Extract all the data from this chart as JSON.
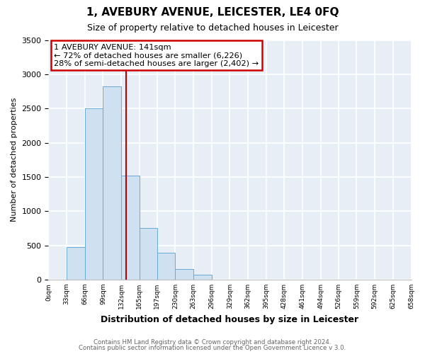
{
  "title": "1, AVEBURY AVENUE, LEICESTER, LE4 0FQ",
  "subtitle": "Size of property relative to detached houses in Leicester",
  "xlabel": "Distribution of detached houses by size in Leicester",
  "ylabel": "Number of detached properties",
  "bin_edges": [
    0,
    33,
    66,
    99,
    132,
    165,
    197,
    230,
    263,
    296,
    329,
    362,
    395,
    428,
    461,
    494,
    526,
    559,
    592,
    625,
    658
  ],
  "bar_heights": [
    0,
    470,
    2500,
    2820,
    1520,
    750,
    390,
    150,
    70,
    0,
    0,
    0,
    0,
    0,
    0,
    0,
    0,
    0,
    0,
    0
  ],
  "bar_color": "#cfe0f0",
  "bar_edge_color": "#6aaad4",
  "property_line_x": 141,
  "annotation_title": "1 AVEBURY AVENUE: 141sqm",
  "annotation_line1": "← 72% of detached houses are smaller (6,226)",
  "annotation_line2": "28% of semi-detached houses are larger (2,402) →",
  "annotation_box_color": "#ffffff",
  "annotation_box_edge": "#cc0000",
  "vline_color": "#bb0000",
  "ylim": [
    0,
    3500
  ],
  "tick_labels": [
    "0sqm",
    "33sqm",
    "66sqm",
    "99sqm",
    "132sqm",
    "165sqm",
    "197sqm",
    "230sqm",
    "263sqm",
    "296sqm",
    "329sqm",
    "362sqm",
    "395sqm",
    "428sqm",
    "461sqm",
    "494sqm",
    "526sqm",
    "559sqm",
    "592sqm",
    "625sqm",
    "658sqm"
  ],
  "footer1": "Contains HM Land Registry data © Crown copyright and database right 2024.",
  "footer2": "Contains public sector information licensed under the Open Government Licence v 3.0.",
  "background_color": "#ffffff",
  "plot_bg_color": "#e8eef5",
  "grid_color": "#ffffff",
  "title_fontsize": 11,
  "subtitle_fontsize": 9
}
